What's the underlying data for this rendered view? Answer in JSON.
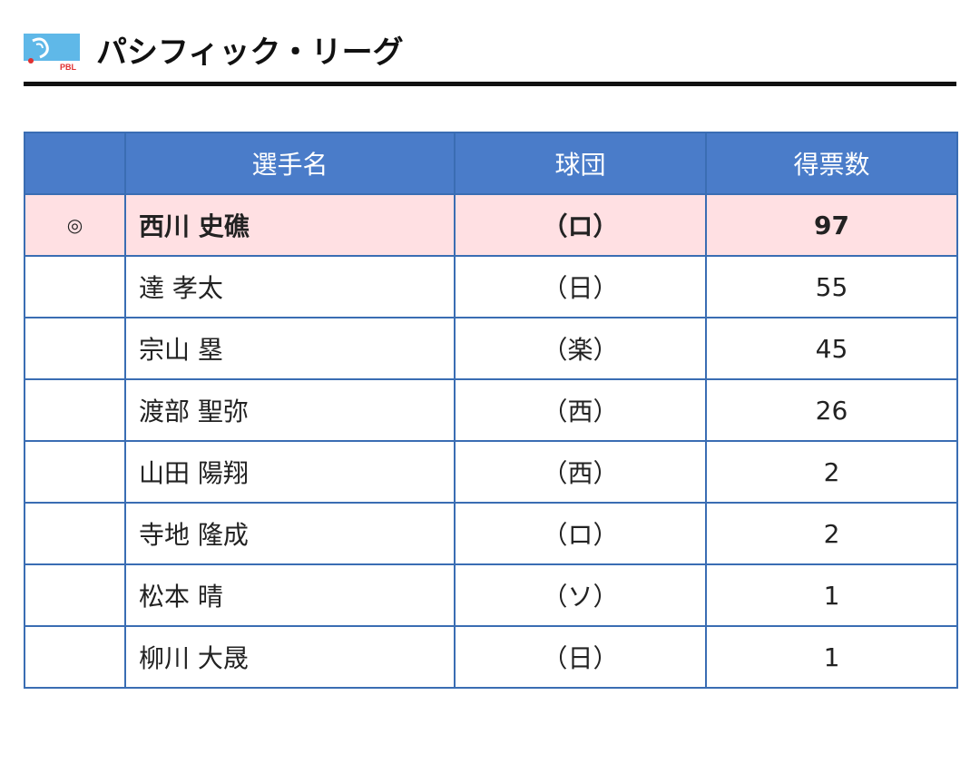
{
  "header": {
    "title": "パシフィック・リーグ",
    "logo_text": "PBL"
  },
  "table": {
    "columns": [
      "",
      "選手名",
      "球団",
      "得票数"
    ],
    "rows": [
      {
        "mark": "◎",
        "name": "西川 史礁",
        "team": "（ロ）",
        "votes": "97"
      },
      {
        "mark": "",
        "name": "達 孝太",
        "team": "（日）",
        "votes": "55"
      },
      {
        "mark": "",
        "name": "宗山 塁",
        "team": "（楽）",
        "votes": "45"
      },
      {
        "mark": "",
        "name": "渡部 聖弥",
        "team": "（西）",
        "votes": "26"
      },
      {
        "mark": "",
        "name": "山田 陽翔",
        "team": "（西）",
        "votes": "2"
      },
      {
        "mark": "",
        "name": "寺地 隆成",
        "team": "（ロ）",
        "votes": "2"
      },
      {
        "mark": "",
        "name": "松本 晴",
        "team": "（ソ）",
        "votes": "1"
      },
      {
        "mark": "",
        "name": "柳川 大晟",
        "team": "（日）",
        "votes": "1"
      }
    ]
  },
  "colors": {
    "header_bg": "#4a7cc9",
    "border": "#3a6db3",
    "highlight_row": "#ffe0e3"
  }
}
